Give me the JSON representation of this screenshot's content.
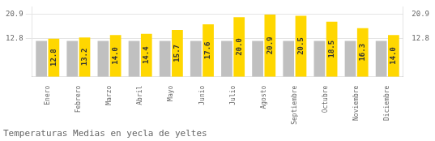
{
  "chart_data": {
    "type": "bar",
    "title": "Temperaturas Medias en yecla de yeltes",
    "categories": [
      "Enero",
      "Febrero",
      "Marzo",
      "Abril",
      "Mayo",
      "Junio",
      "Julio",
      "Agosto",
      "Septiembre",
      "Octubre",
      "Noviembre",
      "Diciembre"
    ],
    "series": [
      {
        "color": "#C0C0C0",
        "values": [
          12.0,
          12.0,
          12.0,
          12.0,
          12.0,
          12.0,
          12.0,
          12.0,
          12.0,
          12.0,
          12.0,
          12.0
        ]
      },
      {
        "color": "#FFD700",
        "values": [
          12.8,
          13.2,
          14.0,
          14.4,
          15.7,
          17.6,
          20.0,
          20.9,
          20.5,
          18.5,
          16.3,
          14.0
        ],
        "value_labels": [
          "12.8",
          "13.2",
          "14.0",
          "14.4",
          "15.7",
          "17.6",
          "20.0",
          "20.9",
          "20.5",
          "18.5",
          "16.3",
          "14.0"
        ],
        "data_labels": true
      }
    ],
    "ylim": [
      0,
      23.5
    ],
    "yticks": [
      12.8,
      20.9
    ],
    "y2lim": [
      0,
      23.5
    ],
    "y2ticks": [
      12.8,
      20.9
    ],
    "grid": true
  }
}
